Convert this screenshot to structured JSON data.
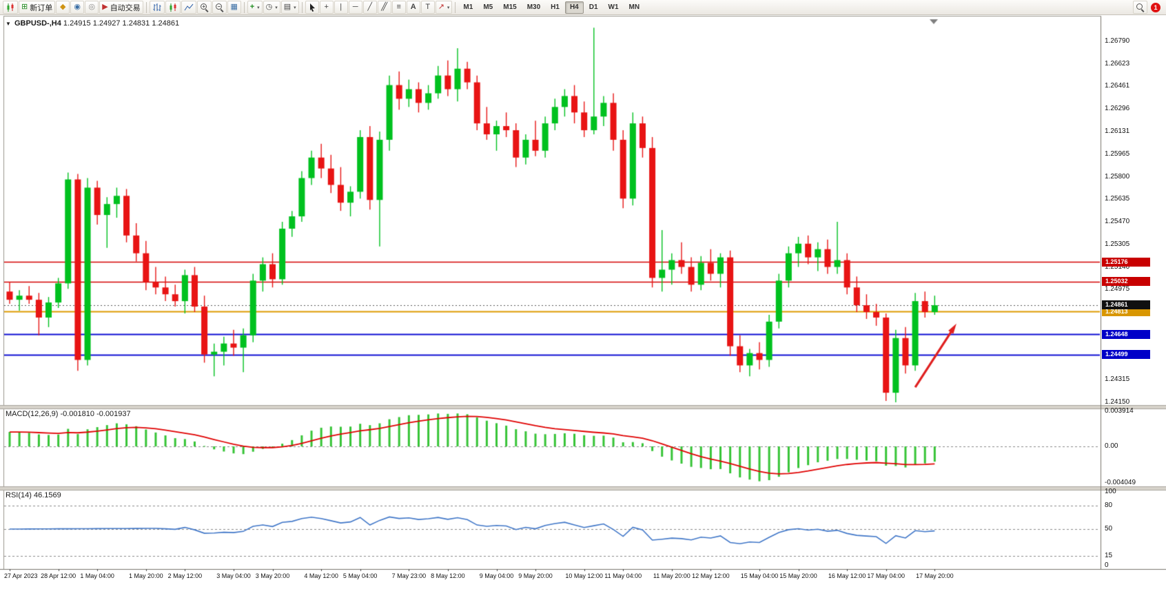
{
  "toolbar": {
    "new_order": "新订单",
    "auto_trading": "自动交易",
    "timeframes": [
      "M1",
      "M5",
      "M15",
      "M30",
      "H1",
      "H4",
      "D1",
      "W1",
      "MN"
    ],
    "active_timeframe": "H4",
    "notification_count": "1",
    "icons": {
      "new_order": "⊞",
      "profiles": "◆",
      "community": "◉",
      "mql5": "◎",
      "auto_trading": "▶",
      "tile_windows": "▦",
      "indicators": "+",
      "periods": "◷",
      "templates": "▤",
      "crosshair": "+",
      "vertical_line": "|",
      "horizontal_line": "─",
      "trendline": "╱",
      "channel": "╱╱",
      "fibonacci": "≡",
      "text": "A",
      "label": "T",
      "arrows": "↗",
      "caret": "▾",
      "one_click": "▼"
    }
  },
  "chart_header": {
    "symbol_period": "GBPUSD-,H4",
    "ohlc": "1.24915 1.24927 1.24831 1.24861"
  },
  "indicators": {
    "macd_label": "MACD(12,26,9) -0.001810 -0.001937",
    "rsi_label": "RSI(14) 46.1569"
  },
  "chart_data": {
    "type": "candlestick",
    "symbol": "GBPUSD-",
    "period": "H4",
    "last_bar": {
      "open": 1.24915,
      "high": 1.24927,
      "low": 1.24831,
      "close": 1.24861
    },
    "colors": {
      "up": "#00C11F",
      "down": "#E81414",
      "background": "#ffffff"
    },
    "price_ticks": [
      "1.26790",
      "1.26623",
      "1.26461",
      "1.26296",
      "1.26131",
      "1.25965",
      "1.25800",
      "1.25635",
      "1.25470",
      "1.25305",
      "1.25140",
      "1.24975",
      "1.24810",
      "1.24645",
      "1.24480",
      "1.24315",
      "1.24150"
    ],
    "time_labels": [
      "27 Apr 2023",
      "28 Apr 12:00",
      "1 May 04:00",
      "1 May 20:00",
      "2 May 12:00",
      "3 May 04:00",
      "3 May 20:00",
      "4 May 12:00",
      "5 May 04:00",
      "7 May 23:00",
      "8 May 12:00",
      "9 May 04:00",
      "9 May 20:00",
      "10 May 12:00",
      "11 May 04:00",
      "11 May 20:00",
      "12 May 12:00",
      "15 May 04:00",
      "15 May 20:00",
      "16 May 12:00",
      "17 May 04:00",
      "17 May 20:00"
    ],
    "hlines": [
      {
        "price": 1.25176,
        "color": "#d40000",
        "tag": "1.25176",
        "tag_bg": "#c80000"
      },
      {
        "price": 1.25032,
        "color": "#d40000",
        "tag": "1.25032",
        "tag_bg": "#c80000"
      },
      {
        "price": 1.24813,
        "color": "#de9c00",
        "tag": "1.24813",
        "tag_bg": "#d89600"
      },
      {
        "price": 1.24648,
        "color": "#0f0fd4",
        "tag": "1.24648",
        "tag_bg": "#0000c8"
      },
      {
        "price": 1.24499,
        "color": "#0f0fd4",
        "tag": "1.24499",
        "tag_bg": "#0000c8"
      }
    ],
    "current_price": {
      "value": 1.24861,
      "tag": "1.24861",
      "tag_bg": "#101010"
    },
    "macd": {
      "params": [
        12,
        26,
        9
      ],
      "value": -0.00181,
      "signal_value": -0.001937,
      "axis": [
        "0.003914",
        "0.00",
        "-0.004049"
      ],
      "range": [
        -0.004049,
        0.003914
      ],
      "bar_color": "#36c436",
      "signal_color": "#e00000"
    },
    "rsi": {
      "period": 14,
      "value": 46.1569,
      "axis": [
        "100",
        "80",
        "50",
        "15",
        "0"
      ],
      "levels": [
        80,
        50,
        15
      ],
      "line_color": "#3f76c8"
    },
    "annotation_arrow": {
      "from_bar": 93,
      "from_price": 1.2426,
      "to_bar": 97,
      "to_price": 1.247,
      "color": "#e02020"
    },
    "ohlc": [
      [
        1.2496,
        1.2503,
        1.2487,
        1.249
      ],
      [
        1.249,
        1.2497,
        1.2482,
        1.2493
      ],
      [
        1.2493,
        1.25,
        1.2487,
        1.249
      ],
      [
        1.249,
        1.2495,
        1.2464,
        1.2477
      ],
      [
        1.2477,
        1.2492,
        1.247,
        1.2488
      ],
      [
        1.2488,
        1.2506,
        1.2484,
        1.2502
      ],
      [
        1.2502,
        1.2583,
        1.2498,
        1.2578
      ],
      [
        1.2578,
        1.2582,
        1.2438,
        1.2446
      ],
      [
        1.2446,
        1.2579,
        1.2442,
        1.2572
      ],
      [
        1.2572,
        1.2577,
        1.2545,
        1.2552
      ],
      [
        1.2552,
        1.2565,
        1.2528,
        1.256
      ],
      [
        1.256,
        1.2572,
        1.255,
        1.2566
      ],
      [
        1.2566,
        1.2571,
        1.2532,
        1.2537
      ],
      [
        1.2537,
        1.2546,
        1.2518,
        1.2524
      ],
      [
        1.2524,
        1.2533,
        1.2497,
        1.2503
      ],
      [
        1.2503,
        1.2514,
        1.2494,
        1.2499
      ],
      [
        1.2499,
        1.2507,
        1.2489,
        1.2494
      ],
      [
        1.2494,
        1.2501,
        1.2485,
        1.2489
      ],
      [
        1.2489,
        1.2512,
        1.248,
        1.2508
      ],
      [
        1.2508,
        1.2514,
        1.2481,
        1.2485
      ],
      [
        1.2485,
        1.2493,
        1.2444,
        1.245
      ],
      [
        1.245,
        1.2458,
        1.2434,
        1.2452
      ],
      [
        1.2452,
        1.2463,
        1.2442,
        1.2458
      ],
      [
        1.2458,
        1.2468,
        1.2449,
        1.2455
      ],
      [
        1.2455,
        1.2469,
        1.2437,
        1.2464
      ],
      [
        1.2464,
        1.2509,
        1.2459,
        1.2504
      ],
      [
        1.2504,
        1.2521,
        1.2496,
        1.2516
      ],
      [
        1.2516,
        1.2524,
        1.2499,
        1.2505
      ],
      [
        1.2505,
        1.2547,
        1.2501,
        1.2542
      ],
      [
        1.2542,
        1.2555,
        1.2536,
        1.2551
      ],
      [
        1.2551,
        1.2584,
        1.2547,
        1.2579
      ],
      [
        1.2579,
        1.2599,
        1.2574,
        1.2594
      ],
      [
        1.2594,
        1.2604,
        1.2579,
        1.2586
      ],
      [
        1.2586,
        1.2596,
        1.2568,
        1.2574
      ],
      [
        1.2574,
        1.2587,
        1.2555,
        1.2561
      ],
      [
        1.2561,
        1.2573,
        1.2551,
        1.2569
      ],
      [
        1.2569,
        1.2614,
        1.2564,
        1.2609
      ],
      [
        1.2609,
        1.2617,
        1.2556,
        1.2563
      ],
      [
        1.2563,
        1.2613,
        1.2529,
        1.2607
      ],
      [
        1.2607,
        1.2654,
        1.2599,
        1.2647
      ],
      [
        1.2647,
        1.2657,
        1.2629,
        1.2637
      ],
      [
        1.2637,
        1.2651,
        1.2631,
        1.2644
      ],
      [
        1.2644,
        1.2649,
        1.2627,
        1.2634
      ],
      [
        1.2634,
        1.2647,
        1.2629,
        1.2641
      ],
      [
        1.2641,
        1.2661,
        1.2637,
        1.2654
      ],
      [
        1.2654,
        1.2665,
        1.2639,
        1.2644
      ],
      [
        1.2644,
        1.2674,
        1.2635,
        1.2659
      ],
      [
        1.2659,
        1.2664,
        1.2644,
        1.2649
      ],
      [
        1.2649,
        1.2654,
        1.2614,
        1.2619
      ],
      [
        1.2619,
        1.2631,
        1.2607,
        1.2611
      ],
      [
        1.2611,
        1.2621,
        1.2599,
        1.2617
      ],
      [
        1.2617,
        1.2627,
        1.2609,
        1.2614
      ],
      [
        1.2614,
        1.2619,
        1.2587,
        1.2594
      ],
      [
        1.2594,
        1.2611,
        1.2589,
        1.2607
      ],
      [
        1.2607,
        1.2621,
        1.2595,
        1.2599
      ],
      [
        1.2599,
        1.2624,
        1.2594,
        1.2619
      ],
      [
        1.2619,
        1.2637,
        1.2614,
        1.2631
      ],
      [
        1.2631,
        1.2644,
        1.2624,
        1.2639
      ],
      [
        1.2639,
        1.2647,
        1.2619,
        1.2627
      ],
      [
        1.2627,
        1.2635,
        1.2609,
        1.2614
      ],
      [
        1.2614,
        1.2689,
        1.2611,
        1.2624
      ],
      [
        1.2624,
        1.2639,
        1.2617,
        1.2634
      ],
      [
        1.2634,
        1.2641,
        1.2599,
        1.2607
      ],
      [
        1.2607,
        1.2614,
        1.2557,
        1.2564
      ],
      [
        1.2564,
        1.2627,
        1.2559,
        1.2619
      ],
      [
        1.2619,
        1.2624,
        1.2594,
        1.2601
      ],
      [
        1.2601,
        1.2609,
        1.2499,
        1.2506
      ],
      [
        1.2506,
        1.2541,
        1.2496,
        1.2512
      ],
      [
        1.2512,
        1.2524,
        1.2501,
        1.2519
      ],
      [
        1.2519,
        1.2532,
        1.2509,
        1.2514
      ],
      [
        1.2514,
        1.2521,
        1.2496,
        1.2501
      ],
      [
        1.2501,
        1.2522,
        1.2497,
        1.2517
      ],
      [
        1.2517,
        1.2527,
        1.2504,
        1.2509
      ],
      [
        1.2509,
        1.2524,
        1.2499,
        1.2521
      ],
      [
        1.2521,
        1.2526,
        1.2449,
        1.2456
      ],
      [
        1.2456,
        1.2464,
        1.2437,
        1.2442
      ],
      [
        1.2442,
        1.2454,
        1.2434,
        1.2451
      ],
      [
        1.2451,
        1.2459,
        1.2439,
        1.2446
      ],
      [
        1.2446,
        1.2479,
        1.2441,
        1.2474
      ],
      [
        1.2474,
        1.2509,
        1.2469,
        1.2504
      ],
      [
        1.2504,
        1.2529,
        1.2499,
        1.2524
      ],
      [
        1.2524,
        1.2536,
        1.2514,
        1.2531
      ],
      [
        1.2531,
        1.2537,
        1.2516,
        1.2521
      ],
      [
        1.2521,
        1.2532,
        1.2511,
        1.2527
      ],
      [
        1.2527,
        1.2534,
        1.2509,
        1.2514
      ],
      [
        1.2514,
        1.2547,
        1.2509,
        1.2519
      ],
      [
        1.2519,
        1.2524,
        1.2494,
        1.2499
      ],
      [
        1.2499,
        1.2507,
        1.2481,
        1.2486
      ],
      [
        1.2486,
        1.2494,
        1.2476,
        1.2481
      ],
      [
        1.2481,
        1.2487,
        1.2471,
        1.2477
      ],
      [
        1.2477,
        1.248,
        1.2416,
        1.2422
      ],
      [
        1.2422,
        1.2468,
        1.2415,
        1.2462
      ],
      [
        1.2462,
        1.247,
        1.2436,
        1.2442
      ],
      [
        1.2442,
        1.2495,
        1.2438,
        1.2489
      ],
      [
        1.2489,
        1.2496,
        1.2477,
        1.2481
      ],
      [
        1.2481,
        1.2493,
        1.2479,
        1.2486
      ]
    ]
  }
}
